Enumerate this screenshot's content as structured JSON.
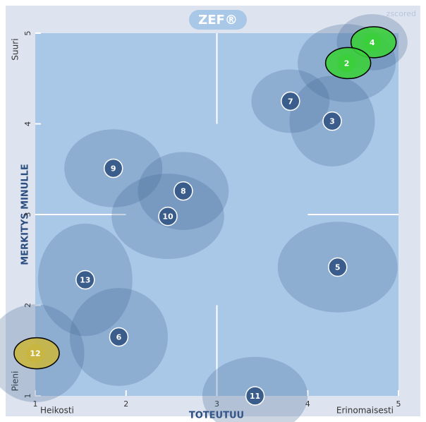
{
  "chart_data": {
    "type": "scatter",
    "title": "ZEF®",
    "subtitle": "zscored",
    "x_label": "TOTEUTUU",
    "y_label": "MERKITYS MINULLE",
    "x_low_label": "Heikosti",
    "x_high_label": "Erinomaisesti",
    "y_low_label": "Pieni",
    "y_high_label": "Suuri",
    "xlim": [
      1,
      5
    ],
    "ylim": [
      1,
      5
    ],
    "xticks": [
      1,
      2,
      3,
      4,
      5
    ],
    "yticks": [
      1,
      2,
      3,
      4,
      5
    ],
    "points": [
      {
        "label": "4",
        "x": 4.71,
        "y": 4.9,
        "sx": 0.39,
        "sy": 0.31,
        "color": "#3ccf3c"
      },
      {
        "label": "2",
        "x": 4.43,
        "y": 4.67,
        "sx": 0.54,
        "sy": 0.43,
        "color": "#3ccf3c"
      },
      {
        "label": "7",
        "x": 3.81,
        "y": 4.25,
        "sx": 0.43,
        "sy": 0.35,
        "color": "#3a5d8c"
      },
      {
        "label": "3",
        "x": 4.27,
        "y": 4.03,
        "sx": 0.47,
        "sy": 0.5,
        "color": "#3a5d8c"
      },
      {
        "label": "9",
        "x": 1.86,
        "y": 3.51,
        "sx": 0.54,
        "sy": 0.43,
        "color": "#3a5d8c"
      },
      {
        "label": "8",
        "x": 2.63,
        "y": 3.26,
        "sx": 0.5,
        "sy": 0.43,
        "color": "#3a5d8c"
      },
      {
        "label": "10",
        "x": 2.46,
        "y": 2.98,
        "sx": 0.62,
        "sy": 0.47,
        "color": "#3a5d8c"
      },
      {
        "label": "13",
        "x": 1.55,
        "y": 2.28,
        "sx": 0.52,
        "sy": 0.62,
        "color": "#3a5d8c"
      },
      {
        "label": "5",
        "x": 4.33,
        "y": 2.42,
        "sx": 0.66,
        "sy": 0.5,
        "color": "#3a5d8c"
      },
      {
        "label": "6",
        "x": 1.92,
        "y": 1.65,
        "sx": 0.54,
        "sy": 0.54,
        "color": "#3a5d8c"
      },
      {
        "label": "12",
        "x": 1.0,
        "y": 1.47,
        "sx": 0.54,
        "sy": 0.54,
        "color": "#c9b640"
      },
      {
        "label": "11",
        "x": 3.42,
        "y": 1.0,
        "sx": 0.58,
        "sy": 0.43,
        "color": "#3a5d8c"
      }
    ]
  }
}
